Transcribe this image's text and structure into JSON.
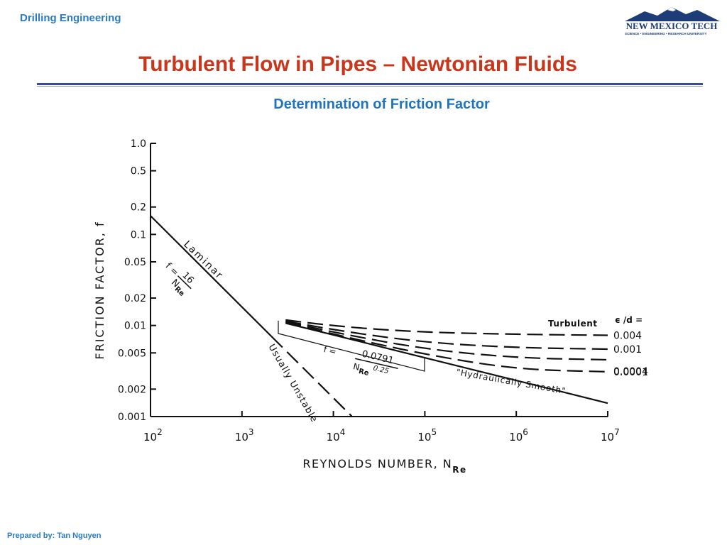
{
  "header": {
    "course": "Drilling Engineering"
  },
  "logo": {
    "name": "NEW MEXICO TECH",
    "tagline": "SCIENCE • ENGINEERING • RESEARCH UNIVERSITY"
  },
  "slide": {
    "title": "Turbulent Flow in Pipes – Newtonian Fluids",
    "subtitle": "Determination of Friction Factor"
  },
  "footer": {
    "prepared_by": "Prepared by: Tan Nguyen"
  },
  "colors": {
    "header_blue": "#2a7bc4",
    "title_red": "#c8361c",
    "rule_navy": "#3a4aa0"
  },
  "chart_data": {
    "type": "line",
    "x_scale": "log",
    "y_scale": "log",
    "xlim": [
      100,
      10000000
    ],
    "ylim": [
      0.001,
      1.0
    ],
    "xlabel": "REYNOLDS NUMBER, N",
    "xlabel_sub": "Re",
    "ylabel": "FRICTION FACTOR, f",
    "x_ticks": [
      {
        "value": 100,
        "base": "10",
        "exp": "2"
      },
      {
        "value": 1000,
        "base": "10",
        "exp": "3"
      },
      {
        "value": 10000,
        "base": "10",
        "exp": "4"
      },
      {
        "value": 100000,
        "base": "10",
        "exp": "5"
      },
      {
        "value": 1000000,
        "base": "10",
        "exp": "6"
      },
      {
        "value": 10000000,
        "base": "10",
        "exp": "7"
      }
    ],
    "y_ticks": [
      {
        "value": 1.0,
        "label": "1.0"
      },
      {
        "value": 0.5,
        "label": "0.5"
      },
      {
        "value": 0.2,
        "label": "0.2"
      },
      {
        "value": 0.1,
        "label": "0.1"
      },
      {
        "value": 0.05,
        "label": "0.05"
      },
      {
        "value": 0.02,
        "label": "0.02"
      },
      {
        "value": 0.01,
        "label": "0.01"
      },
      {
        "value": 0.005,
        "label": "0.005"
      },
      {
        "value": 0.002,
        "label": "0.002"
      },
      {
        "value": 0.001,
        "label": "0.001"
      }
    ],
    "grid": false,
    "series": [
      {
        "name": "Laminar",
        "style": "solid",
        "x": [
          100,
          2100
        ],
        "y": [
          0.16,
          0.0076
        ]
      },
      {
        "name": "Usually Unstable",
        "style": "dashed",
        "x": [
          2100,
          16000
        ],
        "y": [
          0.0076,
          0.001
        ]
      },
      {
        "name": "\"Hydraulically Smooth\"",
        "style": "solid",
        "x": [
          3000,
          10000,
          100000,
          1000000,
          10000000
        ],
        "y": [
          0.0106,
          0.0079,
          0.0044,
          0.0025,
          0.0014
        ]
      },
      {
        "name": "0.0001",
        "style": "dashed",
        "x": [
          3000,
          10000,
          100000,
          1000000,
          10000000
        ],
        "y": [
          0.0108,
          0.008,
          0.0048,
          0.0033,
          0.0031
        ]
      },
      {
        "name": "0.0004",
        "style": "dashed",
        "x": [
          3000,
          10000,
          100000,
          1000000,
          10000000
        ],
        "y": [
          0.011,
          0.0084,
          0.0055,
          0.0044,
          0.0042
        ]
      },
      {
        "name": "0.001",
        "style": "dashed",
        "x": [
          3000,
          10000,
          100000,
          1000000,
          10000000
        ],
        "y": [
          0.0112,
          0.0089,
          0.0065,
          0.0057,
          0.0055
        ]
      },
      {
        "name": "0.004",
        "style": "dashed",
        "x": [
          3000,
          10000,
          100000,
          1000000,
          10000000
        ],
        "y": [
          0.0115,
          0.0098,
          0.0084,
          0.008,
          0.0078
        ]
      }
    ],
    "annotations": {
      "laminar_label": "Laminar",
      "laminar_eq_f": "f =",
      "laminar_eq_num": "16",
      "laminar_eq_den": "N",
      "laminar_eq_den_sub": "Re",
      "unstable_label": "Usually Unstable",
      "turbulent_label": "Turbulent",
      "roughness_header": "ϵ /d =",
      "turb_eq_f": "f  =",
      "turb_eq_num": "0.0791",
      "turb_eq_den": "N",
      "turb_eq_den_sub": "Re",
      "turb_eq_exp": "0.25",
      "smooth_label": "\"Hydraulically Smooth\""
    }
  }
}
